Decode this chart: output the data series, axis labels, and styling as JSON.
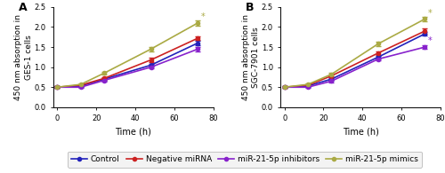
{
  "time_points": [
    0,
    12,
    24,
    48,
    72
  ],
  "panel_A": {
    "title": "A",
    "ylabel": "450 nm absorption in\nGES-1 cells",
    "control": [
      0.5,
      0.53,
      0.7,
      1.05,
      1.6
    ],
    "neg_mirna": [
      0.5,
      0.55,
      0.72,
      1.18,
      1.72
    ],
    "inhibitors": [
      0.5,
      0.5,
      0.67,
      1.0,
      1.45
    ],
    "mimics": [
      0.5,
      0.57,
      0.85,
      1.45,
      2.1
    ],
    "control_err": [
      0.02,
      0.02,
      0.03,
      0.04,
      0.05
    ],
    "neg_mirna_err": [
      0.02,
      0.02,
      0.03,
      0.05,
      0.05
    ],
    "inhibitors_err": [
      0.02,
      0.02,
      0.03,
      0.04,
      0.05
    ],
    "mimics_err": [
      0.02,
      0.02,
      0.04,
      0.05,
      0.06
    ],
    "mimics_star": true,
    "inhibitors_star": false
  },
  "panel_B": {
    "title": "B",
    "ylabel": "450 nm absorption in\nSGC-7901 cells",
    "control": [
      0.5,
      0.53,
      0.7,
      1.25,
      1.83
    ],
    "neg_mirna": [
      0.5,
      0.55,
      0.78,
      1.35,
      1.9
    ],
    "inhibitors": [
      0.5,
      0.5,
      0.65,
      1.2,
      1.5
    ],
    "mimics": [
      0.5,
      0.57,
      0.82,
      1.58,
      2.2
    ],
    "control_err": [
      0.02,
      0.02,
      0.03,
      0.04,
      0.05
    ],
    "neg_mirna_err": [
      0.02,
      0.02,
      0.03,
      0.05,
      0.06
    ],
    "inhibitors_err": [
      0.02,
      0.02,
      0.03,
      0.04,
      0.05
    ],
    "mimics_err": [
      0.02,
      0.02,
      0.04,
      0.05,
      0.05
    ],
    "mimics_star": true,
    "inhibitors_star": true
  },
  "colors": {
    "control": "#2222bb",
    "neg_mirna": "#cc2222",
    "inhibitors": "#8822cc",
    "mimics": "#aaaa44"
  },
  "legend_labels": [
    "Control",
    "Negative miRNA",
    "miR-21-5p inhibitors",
    "miR-21-5p mimics"
  ],
  "xlabel": "Time (h)",
  "ylim": [
    0.0,
    2.5
  ],
  "yticks": [
    0.0,
    0.5,
    1.0,
    1.5,
    2.0,
    2.5
  ],
  "xticks": [
    0,
    20,
    40,
    60,
    80
  ],
  "marker": "o",
  "markersize": 3,
  "linewidth": 1.2,
  "background_color": "#ffffff",
  "legend_box_color": "#f0f0f0"
}
